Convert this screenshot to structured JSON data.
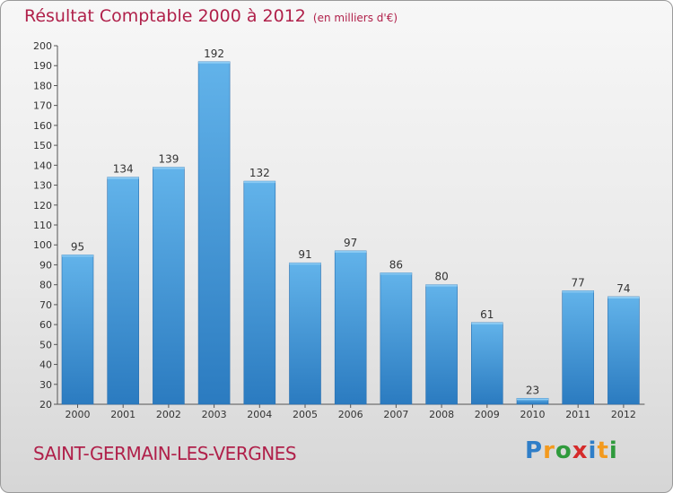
{
  "header": {
    "title": "Résultat Comptable 2000 à 2012",
    "subtitle": "(en milliers d'€)"
  },
  "footer": {
    "commune": "SAINT-GERMAIN-LES-VERGNES",
    "logo_letters": [
      {
        "char": "P",
        "color": "#2f7ec8"
      },
      {
        "char": "r",
        "color": "#f39a1e"
      },
      {
        "char": "o",
        "color": "#2f9a3c"
      },
      {
        "char": "x",
        "color": "#d52b2b"
      },
      {
        "char": "i",
        "color": "#2f7ec8"
      },
      {
        "char": "t",
        "color": "#f39a1e"
      },
      {
        "char": "i",
        "color": "#2f9a3c"
      }
    ]
  },
  "chart_data": {
    "type": "bar",
    "title": "Résultat Comptable 2000 à 2012",
    "subtitle": "(en milliers d'€)",
    "categories": [
      "2000",
      "2001",
      "2002",
      "2003",
      "2004",
      "2005",
      "2006",
      "2007",
      "2008",
      "2009",
      "2010",
      "2011",
      "2012"
    ],
    "values": [
      95,
      134,
      139,
      192,
      132,
      91,
      97,
      86,
      80,
      61,
      23,
      77,
      74
    ],
    "ylim": [
      20,
      200
    ],
    "ytick_step": 10,
    "grid": false,
    "bar_color_light": "#62b3ea",
    "bar_color_dark": "#2b7bc0"
  }
}
